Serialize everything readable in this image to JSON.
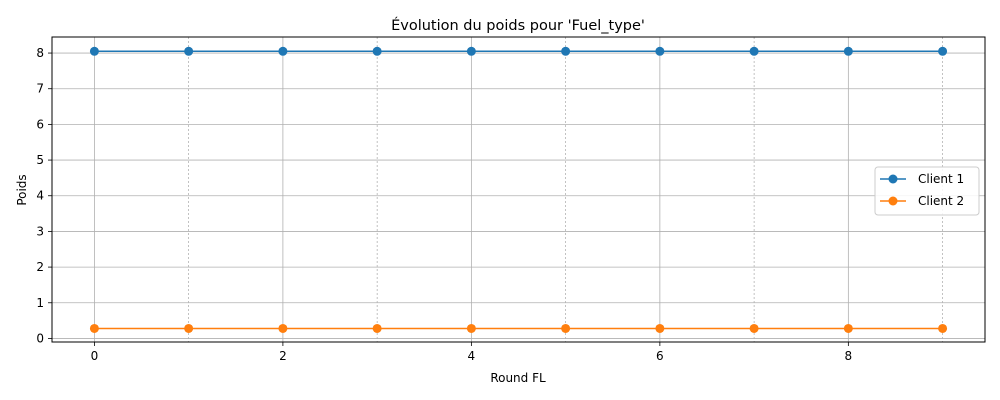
{
  "chart_data": {
    "type": "line",
    "title": "Évolution du poids pour 'Fuel_type'",
    "xlabel": "Round FL",
    "ylabel": "Poids",
    "x": [
      0,
      1,
      2,
      3,
      4,
      5,
      6,
      7,
      8,
      9
    ],
    "xticks": [
      0,
      2,
      4,
      6,
      8
    ],
    "yticks": [
      0,
      1,
      2,
      3,
      4,
      5,
      6,
      7,
      8
    ],
    "xlim": [
      -0.45,
      9.45
    ],
    "ylim": [
      -0.1,
      8.45
    ],
    "grid": true,
    "legend_position": "center-right",
    "series": [
      {
        "name": "Client 1",
        "color": "#1f77b4",
        "values": [
          8.05,
          8.05,
          8.05,
          8.05,
          8.05,
          8.05,
          8.05,
          8.05,
          8.05,
          8.05
        ]
      },
      {
        "name": "Client 2",
        "color": "#ff7f0e",
        "values": [
          0.28,
          0.28,
          0.28,
          0.28,
          0.28,
          0.28,
          0.28,
          0.28,
          0.28,
          0.28
        ]
      }
    ]
  }
}
